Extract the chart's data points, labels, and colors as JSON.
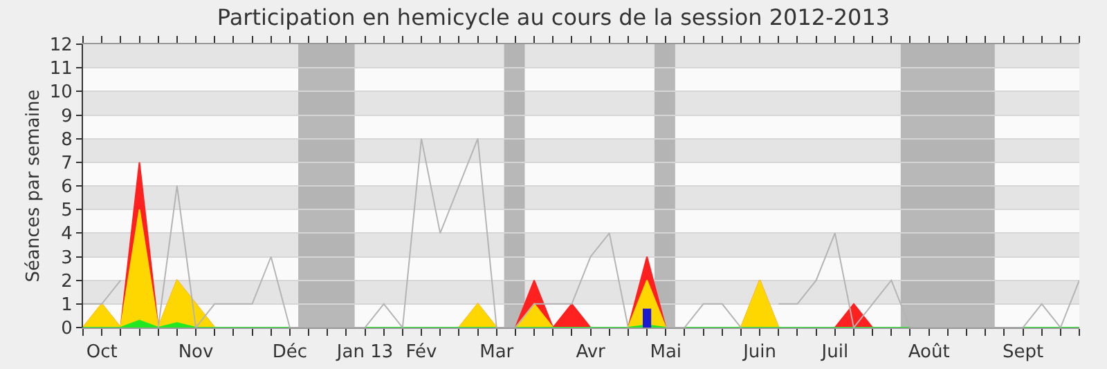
{
  "chart_data": {
    "type": "area",
    "title": "Participation en hemicycle au cours de la session 2012-2013",
    "ylabel": "Séances par semaine",
    "categories": [
      null,
      "Oct",
      null,
      null,
      null,
      null,
      "Nov",
      null,
      null,
      null,
      null,
      "Déc",
      null,
      null,
      null,
      "Jan 13",
      null,
      null,
      "Fév",
      null,
      null,
      null,
      "Mar",
      null,
      null,
      null,
      null,
      "Avr",
      null,
      null,
      null,
      "Mai",
      null,
      null,
      null,
      null,
      "Juin",
      null,
      null,
      null,
      "Juil",
      null,
      null,
      null,
      null,
      "Août",
      null,
      null,
      null,
      null,
      "Sept",
      null,
      null,
      null
    ],
    "ylim": [
      0,
      12
    ],
    "yticks": [
      0,
      1,
      2,
      3,
      4,
      5,
      6,
      7,
      8,
      9,
      10,
      11,
      12
    ],
    "grid": "y",
    "marker": "none",
    "series": [
      {
        "type": "line",
        "color": "#b4b4b4",
        "values": [
          1,
          1,
          2,
          null,
          0,
          6,
          0,
          1,
          1,
          1,
          3,
          0,
          0,
          0,
          0,
          0,
          1,
          0,
          8,
          4,
          6,
          8,
          0,
          0,
          1,
          1,
          1,
          3,
          4,
          0,
          null,
          0,
          0,
          1,
          1,
          0,
          null,
          1,
          1,
          2,
          4,
          0,
          1,
          2,
          0,
          0,
          0,
          0,
          0,
          0,
          0,
          1,
          0,
          2
        ]
      },
      {
        "color": "#ff2020",
        "values": [
          0,
          1,
          0,
          7,
          0,
          2,
          1,
          0,
          0,
          0,
          0,
          0,
          0,
          0,
          0,
          0,
          0,
          0,
          0,
          0,
          0,
          1,
          0,
          0,
          2,
          0,
          1,
          0,
          0,
          0,
          3,
          0,
          0,
          0,
          0,
          0,
          2,
          0,
          0,
          0,
          0,
          1,
          0,
          0,
          0,
          0,
          0,
          0,
          0,
          0,
          0,
          0,
          0,
          0
        ]
      },
      {
        "color": "#ffd700",
        "values": [
          0,
          1,
          0,
          5,
          0,
          2,
          1,
          0,
          0,
          0,
          0,
          0,
          0,
          0,
          0,
          0,
          0,
          0,
          0,
          0,
          0,
          1,
          0,
          0,
          1,
          0,
          0,
          0,
          0,
          0,
          2,
          0,
          0,
          0,
          0,
          0,
          2,
          0,
          0,
          0,
          0,
          0,
          0,
          0,
          0,
          0,
          0,
          0,
          0,
          0,
          0,
          0,
          0,
          0
        ]
      },
      {
        "color": "#22e822",
        "values": [
          0,
          0,
          0,
          0.3,
          0,
          0.2,
          0,
          0,
          0,
          0,
          0,
          0,
          0,
          0,
          0,
          0,
          0,
          0,
          0,
          0,
          0,
          0,
          0,
          0,
          0,
          0,
          0,
          0,
          0,
          0,
          0.1,
          0,
          0,
          0,
          0,
          0,
          0,
          0,
          0,
          0,
          0,
          0,
          0,
          0,
          0,
          0,
          0,
          0,
          0,
          0,
          0,
          0,
          0,
          0
        ]
      },
      {
        "type": "bar",
        "color": "#1a1ad0",
        "values": [
          null,
          null,
          null,
          null,
          null,
          null,
          null,
          null,
          null,
          null,
          null,
          null,
          null,
          null,
          null,
          null,
          null,
          null,
          null,
          null,
          null,
          null,
          null,
          null,
          null,
          null,
          null,
          null,
          null,
          null,
          0.8,
          null,
          null,
          null,
          null,
          null,
          null,
          null,
          null,
          null,
          null,
          null,
          null,
          null,
          null,
          null,
          null,
          null,
          null,
          null,
          null,
          null,
          null,
          null
        ]
      }
    ]
  }
}
